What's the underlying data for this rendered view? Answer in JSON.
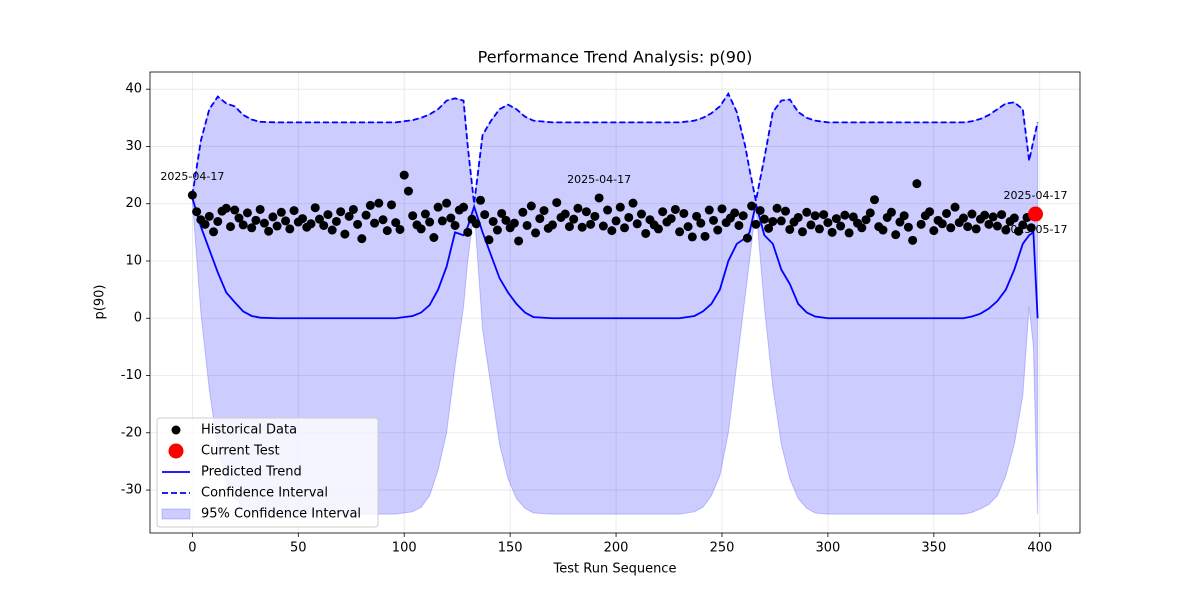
{
  "chart_data": {
    "type": "combo",
    "title": "Performance Trend Analysis: p(90)",
    "x_label": "Test Run Sequence",
    "y_label": "p(90)",
    "xlim": [
      -20,
      419
    ],
    "ylim": [
      -37.5,
      43
    ],
    "xticks": [
      0,
      50,
      100,
      150,
      200,
      250,
      300,
      350,
      400
    ],
    "yticks": [
      -30,
      -20,
      -10,
      0,
      10,
      20,
      30,
      40
    ],
    "grid": true,
    "legend": "lower left",
    "series": [
      {
        "name": "Historical Data",
        "type": "scatter",
        "color": "#000000",
        "size": 4.5,
        "x": [
          0,
          2,
          4,
          6,
          8,
          10,
          12,
          14,
          16,
          18,
          20,
          22,
          24,
          26,
          28,
          30,
          32,
          34,
          36,
          38,
          40,
          42,
          44,
          46,
          48,
          50,
          52,
          54,
          56,
          58,
          60,
          62,
          64,
          66,
          68,
          70,
          72,
          74,
          76,
          78,
          80,
          82,
          84,
          86,
          88,
          90,
          92,
          94,
          96,
          98,
          100,
          102,
          104,
          106,
          108,
          110,
          112,
          114,
          116,
          118,
          120,
          122,
          124,
          126,
          128,
          130,
          132,
          134,
          136,
          138,
          140,
          142,
          144,
          146,
          148,
          150,
          152,
          154,
          156,
          158,
          160,
          162,
          164,
          166,
          168,
          170,
          172,
          174,
          176,
          178,
          180,
          182,
          184,
          186,
          188,
          190,
          192,
          194,
          196,
          198,
          200,
          202,
          204,
          206,
          208,
          210,
          212,
          214,
          216,
          218,
          220,
          222,
          224,
          226,
          228,
          230,
          232,
          234,
          236,
          238,
          240,
          242,
          244,
          246,
          248,
          250,
          252,
          254,
          256,
          258,
          260,
          262,
          264,
          266,
          268,
          270,
          272,
          274,
          276,
          278,
          280,
          282,
          284,
          286,
          288,
          290,
          292,
          294,
          296,
          298,
          300,
          302,
          304,
          306,
          308,
          310,
          312,
          314,
          316,
          318,
          320,
          322,
          324,
          326,
          328,
          330,
          332,
          334,
          336,
          338,
          340,
          342,
          344,
          346,
          348,
          350,
          352,
          354,
          356,
          358,
          360,
          362,
          364,
          366,
          368,
          370,
          372,
          374,
          376,
          378,
          380,
          382,
          384,
          386,
          388,
          390,
          392,
          394,
          396
        ],
        "values": [
          21.5,
          18.6,
          17.2,
          16.4,
          17.8,
          15.1,
          16.9,
          18.7,
          19.2,
          16.0,
          18.9,
          17.5,
          16.3,
          18.4,
          15.8,
          17.1,
          19.0,
          16.6,
          15.2,
          17.7,
          16.1,
          18.5,
          17.0,
          15.6,
          18.8,
          16.8,
          17.4,
          15.9,
          16.5,
          19.3,
          17.3,
          16.2,
          18.1,
          15.4,
          16.9,
          18.6,
          14.7,
          17.8,
          19.0,
          16.4,
          13.9,
          18.0,
          19.7,
          16.6,
          20.1,
          17.2,
          15.3,
          19.8,
          16.7,
          15.5,
          25.0,
          22.2,
          17.9,
          16.3,
          15.6,
          18.2,
          16.8,
          14.1,
          19.4,
          17.0,
          20.1,
          17.5,
          16.2,
          18.9,
          19.4,
          15.0,
          17.3,
          16.5,
          20.6,
          18.1,
          13.7,
          16.9,
          15.4,
          18.3,
          17.1,
          15.8,
          16.6,
          13.5,
          18.5,
          16.2,
          19.6,
          14.9,
          17.4,
          18.8,
          15.7,
          16.3,
          20.2,
          17.6,
          18.2,
          16.0,
          17.3,
          19.2,
          15.9,
          18.6,
          16.4,
          17.8,
          21.0,
          16.1,
          18.9,
          15.3,
          17.0,
          19.4,
          15.8,
          17.6,
          20.1,
          16.5,
          18.2,
          14.8,
          17.2,
          16.3,
          15.6,
          18.6,
          16.8,
          17.4,
          19.0,
          15.1,
          18.3,
          16.0,
          14.2,
          17.8,
          16.6,
          14.3,
          18.9,
          17.1,
          15.4,
          19.1,
          16.7,
          17.5,
          18.4,
          16.2,
          17.9,
          14.0,
          19.6,
          16.4,
          18.8,
          17.3,
          15.7,
          16.9,
          19.2,
          17.0,
          18.7,
          15.5,
          16.8,
          17.6,
          15.1,
          18.5,
          16.3,
          17.9,
          15.6,
          18.1,
          16.7,
          15.0,
          17.4,
          16.1,
          18.0,
          14.9,
          17.7,
          16.6,
          15.8,
          17.2,
          18.4,
          20.7,
          16.0,
          15.4,
          17.6,
          18.5,
          14.6,
          16.8,
          17.9,
          15.9,
          13.6,
          23.5,
          16.4,
          17.9,
          18.6,
          15.3,
          17.1,
          16.5,
          18.3,
          15.8,
          19.4,
          16.7,
          17.5,
          16.0,
          18.2,
          15.6,
          17.3,
          18.0,
          16.4,
          17.7,
          16.1,
          18.1,
          15.4,
          16.9,
          17.5,
          15.2,
          16.3,
          17.6,
          15.8
        ]
      },
      {
        "name": "Current Test",
        "type": "scatter",
        "color": "#ff0000",
        "size": 7.5,
        "x": [
          398
        ],
        "values": [
          18.2
        ]
      },
      {
        "name": "Predicted Trend",
        "type": "line",
        "color": "#0000ff",
        "x": [
          0,
          4,
          8,
          12,
          16,
          20,
          24,
          28,
          32,
          40,
          96,
          104,
          108,
          112,
          116,
          120,
          124,
          128,
          130,
          133,
          137,
          141,
          145,
          149,
          153,
          157,
          161,
          170,
          230,
          237,
          241,
          245,
          249,
          253,
          257,
          261,
          263,
          266,
          270,
          274,
          278,
          282,
          286,
          290,
          294,
          300,
          364,
          368,
          372,
          376,
          380,
          384,
          388,
          392,
          395,
          397,
          399
        ],
        "values": [
          21,
          16,
          12,
          8,
          4.5,
          2.8,
          1.2,
          0.4,
          0.1,
          0,
          0,
          0.4,
          1,
          2.3,
          5,
          9,
          15,
          14.5,
          16,
          19.5,
          15,
          11,
          7,
          4.5,
          2.5,
          1,
          0.2,
          0,
          0,
          0.4,
          1.2,
          2.5,
          5,
          10,
          13,
          14,
          15,
          20,
          14.5,
          13,
          8.5,
          6,
          2.5,
          1,
          0.3,
          0,
          0,
          0.3,
          0.8,
          1.7,
          3,
          5,
          8.5,
          13,
          14.5,
          15,
          0
        ]
      },
      {
        "name": "Confidence Interval",
        "type": "line",
        "dashed": true,
        "color": "#0000ff",
        "x": [
          0,
          4,
          8,
          12,
          16,
          20,
          24,
          28,
          32,
          40,
          96,
          104,
          108,
          112,
          116,
          120,
          124,
          128,
          130,
          133,
          137,
          141,
          145,
          149,
          153,
          157,
          161,
          170,
          230,
          237,
          241,
          245,
          249,
          253,
          257,
          261,
          263,
          266,
          270,
          274,
          278,
          282,
          286,
          290,
          294,
          300,
          364,
          368,
          372,
          376,
          380,
          384,
          388,
          392,
          395,
          397,
          399
        ],
        "values": [
          21.5,
          31,
          36.5,
          38.7,
          37.5,
          37,
          35.5,
          34.7,
          34.3,
          34.2,
          34.2,
          34.6,
          35,
          35.6,
          36.5,
          38,
          38.4,
          38,
          30,
          20,
          32,
          34.5,
          36.5,
          37.3,
          36.5,
          35.2,
          34.5,
          34.2,
          34.2,
          34.5,
          35,
          35.8,
          37,
          39.2,
          36,
          30,
          26,
          20.5,
          28,
          36,
          38,
          38.2,
          36,
          35,
          34.5,
          34.2,
          34.2,
          34.4,
          34.8,
          35.5,
          36.5,
          37.5,
          37.7,
          36.5,
          27.5,
          31,
          34.2
        ]
      },
      {
        "name": "95% Confidence Interval",
        "type": "band",
        "color": "#0000ff",
        "opacity": 0.2,
        "x": [
          0,
          4,
          8,
          12,
          16,
          20,
          24,
          28,
          32,
          40,
          96,
          104,
          108,
          112,
          116,
          120,
          124,
          128,
          130,
          133,
          137,
          141,
          145,
          149,
          153,
          157,
          161,
          170,
          230,
          237,
          241,
          245,
          249,
          253,
          257,
          261,
          263,
          266,
          270,
          274,
          278,
          282,
          286,
          290,
          294,
          300,
          364,
          368,
          372,
          376,
          380,
          384,
          388,
          392,
          395,
          397,
          399
        ],
        "lower": [
          20.5,
          1,
          -12.5,
          -22.7,
          -28.5,
          -31.4,
          -33.1,
          -33.9,
          -34.1,
          -34.2,
          -34.2,
          -33.8,
          -33,
          -31,
          -26.5,
          -20,
          -8.4,
          2,
          10,
          19,
          -2,
          -12,
          -22,
          -28,
          -31.5,
          -33.2,
          -34,
          -34.2,
          -34.2,
          -33.8,
          -33,
          -31,
          -27.5,
          -20,
          -8,
          4,
          10,
          19.5,
          2,
          -12,
          -22,
          -28,
          -31.5,
          -33.2,
          -34,
          -34.2,
          -34.2,
          -33.9,
          -33.3,
          -32.5,
          -31,
          -27.5,
          -22,
          -13.5,
          2,
          -5,
          -34.2
        ],
        "upper": [
          21.5,
          31,
          36.5,
          38.7,
          37.5,
          37,
          35.5,
          34.7,
          34.3,
          34.2,
          34.2,
          34.6,
          35,
          35.6,
          36.5,
          38,
          38.4,
          38,
          30,
          20,
          32,
          34.5,
          36.5,
          37.3,
          36.5,
          35.2,
          34.5,
          34.2,
          34.2,
          34.5,
          35,
          35.8,
          37,
          39.2,
          36,
          30,
          26,
          20.5,
          28,
          36,
          38,
          38.2,
          36,
          35,
          34.5,
          34.2,
          34.2,
          34.4,
          34.8,
          35.5,
          36.5,
          37.5,
          37.7,
          36.5,
          27.5,
          31,
          34.2
        ]
      }
    ],
    "annotations": [
      {
        "text": "2025-04-17",
        "x": 0,
        "y": 21.5,
        "position": "above"
      },
      {
        "text": "2025-04-17",
        "x": 192,
        "y": 21.0,
        "position": "above"
      },
      {
        "text": "2025-04-17",
        "x": 398,
        "y": 18.2,
        "position": "above"
      },
      {
        "text": "2025-05-17",
        "x": 398,
        "y": 18.2,
        "position": "below"
      }
    ]
  }
}
